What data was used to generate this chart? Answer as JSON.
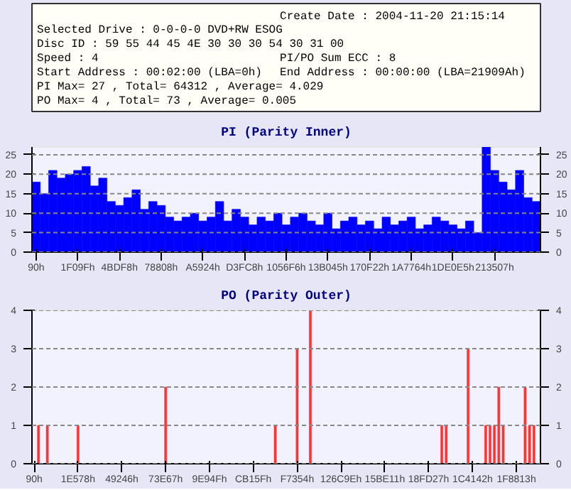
{
  "chart_data": [
    {
      "type": "other",
      "annotations": [
        "Create Date : 2004-11-20 21:15:14",
        "Selected Drive : 0-0-0-0 DVD+RW ESOG",
        "Disc ID : 59 55 44 45 4E 30 30 30 54 30 31 00",
        "Speed : 4",
        "PI/PO Sum ECC : 8",
        "Start Address : 00:02:00 (LBA=0h)",
        "End Address : 00:00:00 (LBA=21909Ah)",
        "PI Max= 27 , Total= 64312 , Average= 4.029",
        "PO Max= 4 , Total= 73 , Average= 0.005"
      ]
    },
    {
      "type": "bar",
      "title": "PI (Parity Inner)",
      "grid": "y",
      "categories": [
        "90h",
        null,
        null,
        null,
        null,
        "1F09Fh",
        null,
        null,
        null,
        null,
        "4BDF8h",
        null,
        null,
        null,
        null,
        "78808h",
        null,
        null,
        null,
        null,
        "A5924h",
        null,
        null,
        null,
        null,
        "D3FC8h",
        null,
        null,
        null,
        null,
        "1056F6h",
        null,
        null,
        null,
        null,
        "13B045h",
        null,
        null,
        null,
        null,
        "170F22h",
        null,
        null,
        null,
        null,
        "1A7764h",
        null,
        null,
        null,
        null,
        "1DE0E5h",
        null,
        null,
        null,
        null,
        "213507h",
        null,
        null,
        null,
        null,
        null
      ],
      "series": [
        {
          "color": "#0000ff",
          "values": [
            18,
            15,
            21,
            19,
            20,
            21,
            22,
            17,
            19,
            13,
            12,
            14,
            16,
            11,
            13,
            12,
            9,
            8,
            9,
            10,
            8,
            9,
            13,
            8,
            11,
            9,
            7,
            9,
            8,
            10,
            7,
            9,
            10,
            8,
            7,
            10,
            6,
            8,
            9,
            7,
            8,
            6,
            9,
            7,
            8,
            9,
            6,
            7,
            9,
            8,
            7,
            6,
            8,
            5,
            27,
            21,
            18,
            16,
            21,
            14,
            13
          ]
        }
      ],
      "ylim": [
        0,
        27
      ],
      "yticks": [
        0,
        5,
        10,
        15,
        20,
        25
      ],
      "y2lim": [
        0,
        27
      ],
      "y2ticks": [
        0,
        5,
        10,
        15,
        20,
        25
      ]
    },
    {
      "type": "bar",
      "title": "PO (Parity Outer)",
      "grid": "y",
      "categories": [
        "90h",
        null,
        null,
        null,
        null,
        null,
        null,
        null,
        null,
        null,
        "1E578h",
        null,
        null,
        null,
        null,
        null,
        null,
        null,
        null,
        null,
        "49246h",
        null,
        null,
        null,
        null,
        null,
        null,
        null,
        null,
        null,
        "73E67h",
        null,
        null,
        null,
        null,
        null,
        null,
        null,
        null,
        null,
        "9E94Fh",
        null,
        null,
        null,
        null,
        null,
        null,
        null,
        null,
        null,
        "CB15Fh",
        null,
        null,
        null,
        null,
        null,
        null,
        null,
        null,
        null,
        "F7354h",
        null,
        null,
        null,
        null,
        null,
        null,
        null,
        null,
        null,
        "126C9Eh",
        null,
        null,
        null,
        null,
        null,
        null,
        null,
        null,
        null,
        "15BE11h",
        null,
        null,
        null,
        null,
        null,
        null,
        null,
        null,
        null,
        "18FD27h",
        null,
        null,
        null,
        null,
        null,
        null,
        null,
        null,
        null,
        "1C4142h",
        null,
        null,
        null,
        null,
        null,
        null,
        null,
        null,
        null,
        "1F8813h",
        null,
        null,
        null,
        null,
        null
      ],
      "series": [
        {
          "color": "#ff3333",
          "values": [
            null,
            1,
            null,
            1,
            null,
            null,
            null,
            null,
            null,
            null,
            1,
            null,
            null,
            null,
            null,
            null,
            null,
            null,
            null,
            null,
            null,
            null,
            null,
            null,
            null,
            null,
            null,
            null,
            null,
            null,
            2,
            null,
            null,
            null,
            null,
            null,
            null,
            null,
            null,
            null,
            null,
            null,
            null,
            null,
            null,
            null,
            null,
            null,
            null,
            null,
            null,
            null,
            null,
            null,
            null,
            1,
            null,
            null,
            null,
            null,
            3,
            null,
            null,
            4,
            null,
            null,
            null,
            null,
            null,
            null,
            null,
            null,
            null,
            null,
            null,
            null,
            null,
            null,
            null,
            null,
            null,
            null,
            null,
            null,
            null,
            null,
            null,
            null,
            null,
            null,
            null,
            null,
            null,
            1,
            1,
            null,
            null,
            null,
            null,
            3,
            null,
            null,
            null,
            1,
            1,
            1,
            2,
            1,
            null,
            null,
            null,
            null,
            2,
            1,
            1,
            null
          ]
        }
      ],
      "ylim": [
        0,
        4
      ],
      "yticks": [
        0,
        1,
        2,
        3,
        4
      ],
      "y2lim": [
        0,
        4
      ],
      "y2ticks": [
        0,
        1,
        2,
        3,
        4
      ]
    }
  ]
}
